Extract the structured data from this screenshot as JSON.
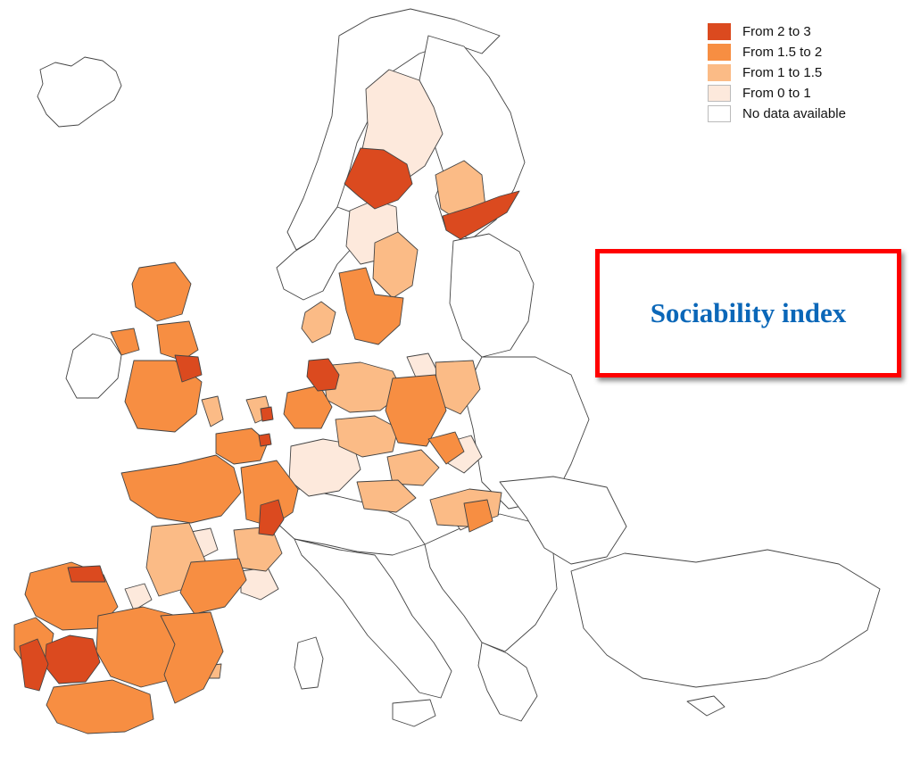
{
  "title": "Sociability index",
  "legend": [
    {
      "label": "From 2 to 3",
      "color": "#db4a1f"
    },
    {
      "label": "From 1.5 to 2",
      "color": "#f78e42"
    },
    {
      "label": "From 1 to 1.5",
      "color": "#fbbb86"
    },
    {
      "label": "From 0 to 1",
      "color": "#fde9dc"
    },
    {
      "label": "No data available",
      "color": "#ffffff"
    }
  ]
}
